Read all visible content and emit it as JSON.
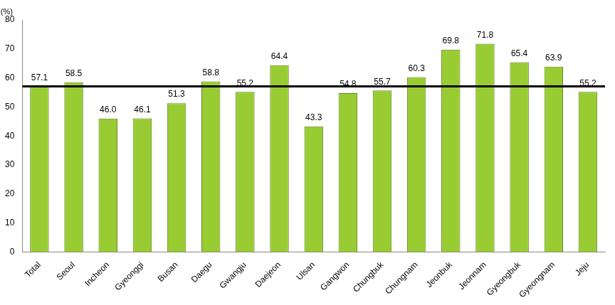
{
  "chart_data": {
    "type": "bar",
    "ylabel": "(%)",
    "categories": [
      "Total",
      "Seoul",
      "Incheon",
      "Gyeonggi",
      "Busan",
      "Daegu",
      "Gwangju",
      "Daejeon",
      "Ulsan",
      "Gangwon",
      "Chungbuk",
      "Chungnam",
      "Jeonbuk",
      "Jeonnam",
      "Gyeongbuk",
      "Gyeongnam",
      "Jeju"
    ],
    "values": [
      57.1,
      58.5,
      46.0,
      46.1,
      51.3,
      58.8,
      55.2,
      64.4,
      43.3,
      54.8,
      55.7,
      60.3,
      69.8,
      71.8,
      65.4,
      63.9,
      55.2
    ],
    "value_labels": [
      "57.1",
      "58.5",
      "46.0",
      "46.1",
      "51.3",
      "58.8",
      "55.2",
      "64.4",
      "43.3",
      "54.8",
      "55.7",
      "60.3",
      "69.8",
      "71.8",
      "65.4",
      "63.9",
      "55.2"
    ],
    "reference_line": 57.1,
    "color": "#99cc33",
    "ylim": [
      0,
      80
    ],
    "yticks": [
      0,
      10,
      20,
      30,
      40,
      50,
      60,
      70,
      80
    ],
    "grid": false,
    "data_labels": true
  }
}
